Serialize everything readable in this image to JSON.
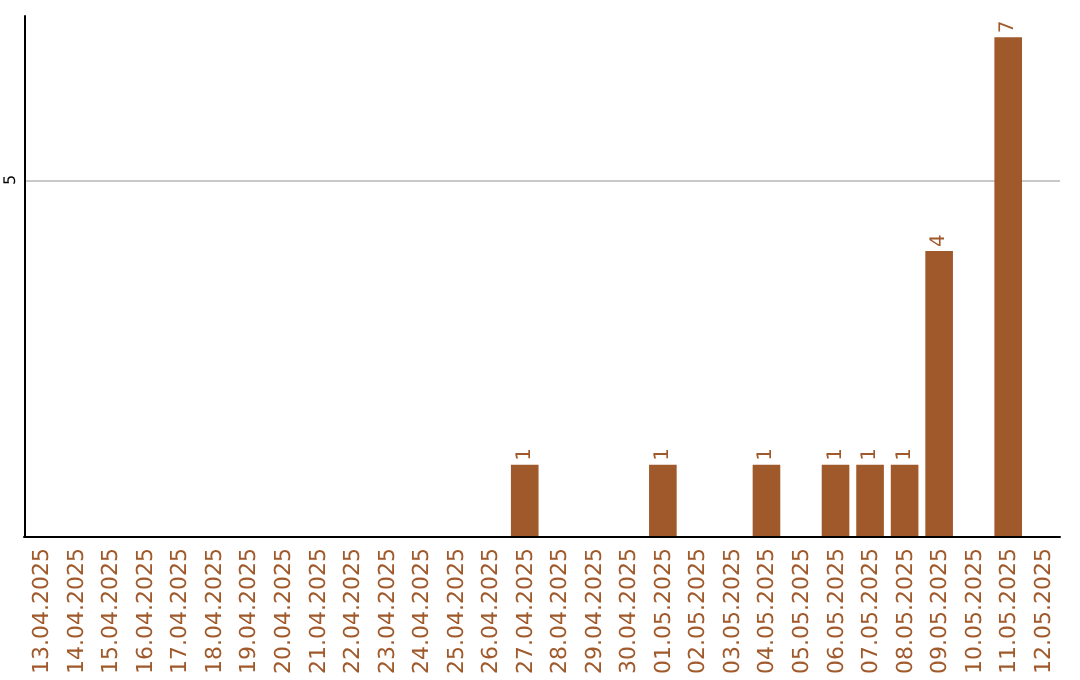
{
  "chart_data": {
    "type": "bar",
    "categories": [
      "13.04.2025",
      "14.04.2025",
      "15.04.2025",
      "16.04.2025",
      "17.04.2025",
      "18.04.2025",
      "19.04.2025",
      "20.04.2025",
      "21.04.2025",
      "22.04.2025",
      "23.04.2025",
      "24.04.2025",
      "25.04.2025",
      "26.04.2025",
      "27.04.2025",
      "28.04.2025",
      "29.04.2025",
      "30.04.2025",
      "01.05.2025",
      "02.05.2025",
      "03.05.2025",
      "04.05.2025",
      "05.05.2025",
      "06.05.2025",
      "07.05.2025",
      "08.05.2025",
      "09.05.2025",
      "10.05.2025",
      "11.05.2025",
      "12.05.2025"
    ],
    "values": [
      null,
      null,
      null,
      null,
      null,
      null,
      null,
      null,
      null,
      null,
      null,
      null,
      null,
      null,
      1,
      null,
      null,
      null,
      1,
      null,
      null,
      1,
      null,
      1,
      1,
      1,
      4,
      null,
      7,
      null
    ],
    "data_labels": true,
    "color": "#a0592a",
    "ylim": [
      0,
      7.3
    ],
    "yticks": [
      5
    ],
    "grid": "y"
  }
}
